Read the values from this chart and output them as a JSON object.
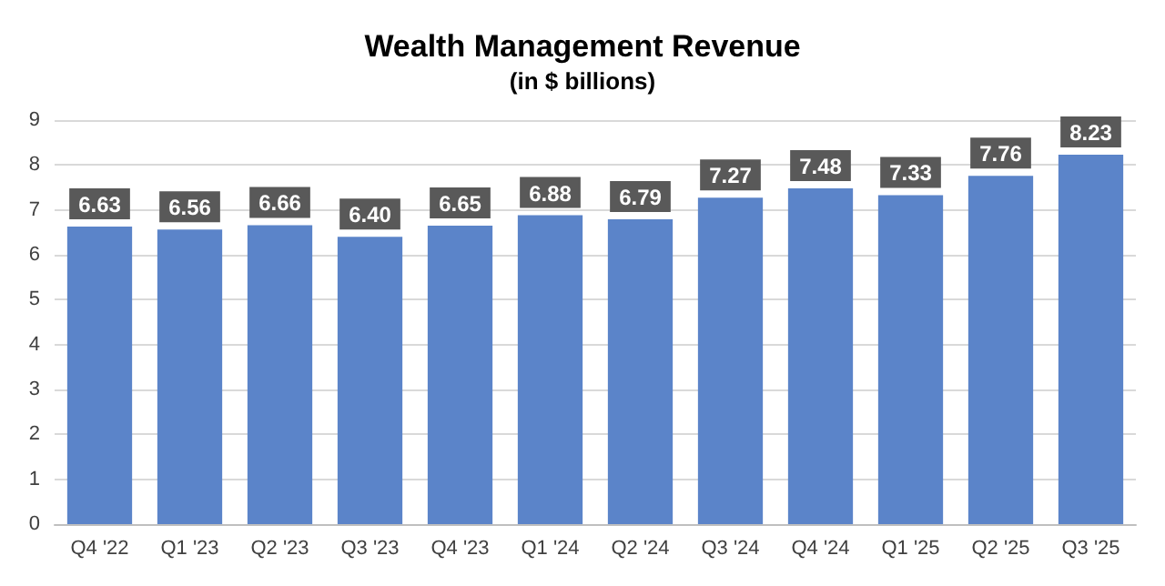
{
  "chart_data": {
    "type": "bar",
    "title": "Wealth Management Revenue",
    "subtitle": "(in $ billions)",
    "categories": [
      "Q4 '22",
      "Q1 '23",
      "Q2 '23",
      "Q3 '23",
      "Q4 '23",
      "Q1 '24",
      "Q2 '24",
      "Q3 '24",
      "Q4 '24",
      "Q1 '25",
      "Q2 '25",
      "Q3 '25"
    ],
    "values": [
      6.63,
      6.56,
      6.66,
      6.4,
      6.65,
      6.88,
      6.79,
      7.27,
      7.48,
      7.33,
      7.76,
      8.23
    ],
    "value_labels": [
      "6.63",
      "6.56",
      "6.66",
      "6.40",
      "6.65",
      "6.88",
      "6.79",
      "7.27",
      "7.48",
      "7.33",
      "7.76",
      "8.23"
    ],
    "color": "#5b84c9",
    "ylim": [
      0,
      9
    ],
    "yticks": [
      0,
      1,
      2,
      3,
      4,
      5,
      6,
      7,
      8,
      9
    ],
    "grid": "y"
  }
}
